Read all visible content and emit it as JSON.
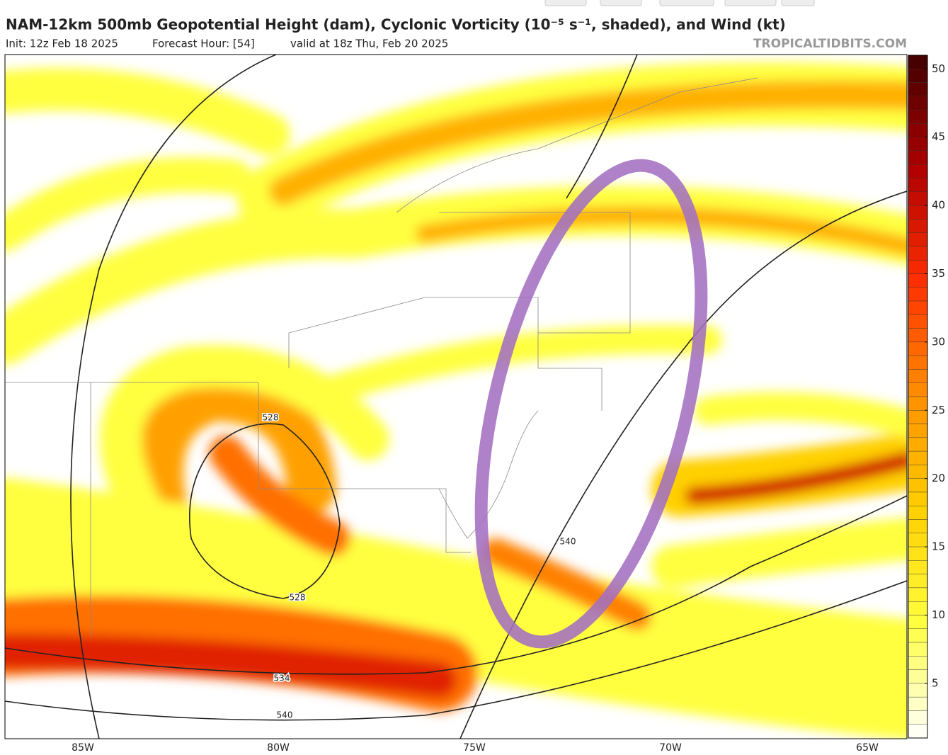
{
  "header": {
    "title": "NAM-12km 500mb Geopotential Height (dam), Cyclonic Vorticity (10⁻⁵ s⁻¹, shaded), and Wind (kt)",
    "init": "Init: 12z Feb 18 2025",
    "forecast_hour": "Forecast Hour: [54]",
    "valid": "valid at 18z Thu, Feb 20 2025",
    "source": "TROPICALTIDBITS.COM"
  },
  "map": {
    "longitude_labels": [
      "85W",
      "80W",
      "75W",
      "70W",
      "65W"
    ],
    "contour_labels": [
      "528",
      "528",
      "540",
      "534",
      "540"
    ]
  },
  "colorbar": {
    "lim": [
      1,
      51
    ],
    "ticks": [
      5,
      10,
      15,
      20,
      25,
      30,
      35,
      40,
      45,
      50
    ],
    "colors": [
      "#ffffff",
      "#ffff40",
      "#ffd000",
      "#ff9000",
      "#ff3000",
      "#b00000",
      "#400000"
    ]
  }
}
